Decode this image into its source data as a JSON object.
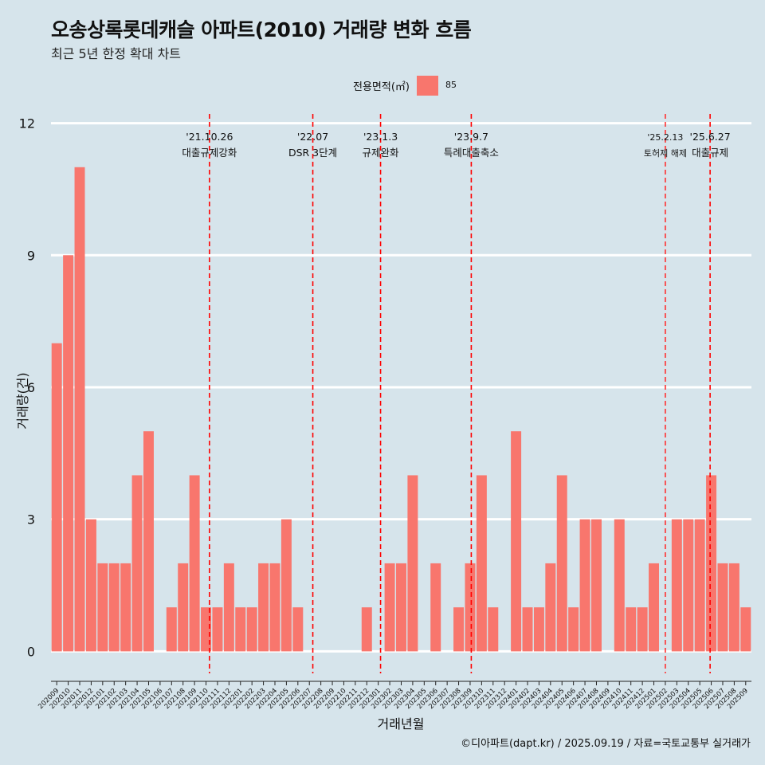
{
  "title": "오송상록롯데캐슬 아파트(2010) 거래량 변화 흐름",
  "subtitle": "최근 5년 한정 확대 차트",
  "caption": "©디아파트(dapt.kr) / 2025.09.19 / 자료=국토교통부 실거래가",
  "legend": {
    "title": "전용면적(㎡)",
    "label": "85",
    "color": "#f8766d"
  },
  "chart_data": {
    "type": "bar",
    "xlabel": "거래년월",
    "ylabel": "거래량(건)",
    "ylim": [
      -0.5,
      12.3
    ],
    "yticks": [
      0,
      3,
      6,
      9,
      12
    ],
    "bar_color": "#f8766d",
    "categories": [
      "202009",
      "202010",
      "202011",
      "202012",
      "202101",
      "202102",
      "202103",
      "202104",
      "202105",
      "202106",
      "202107",
      "202108",
      "202109",
      "202110",
      "202111",
      "202112",
      "202201",
      "202202",
      "202203",
      "202204",
      "202205",
      "202206",
      "202207",
      "202208",
      "202209",
      "202210",
      "202211",
      "202212",
      "202301",
      "202302",
      "202303",
      "202304",
      "202305",
      "202306",
      "202307",
      "202308",
      "202309",
      "202310",
      "202311",
      "202312",
      "202401",
      "202402",
      "202403",
      "202404",
      "202405",
      "202406",
      "202407",
      "202408",
      "202409",
      "202410",
      "202411",
      "202412",
      "202501",
      "202502",
      "202503",
      "202504",
      "202505",
      "202506",
      "202507",
      "202508",
      "202509"
    ],
    "values": [
      7,
      9,
      11,
      3,
      2,
      2,
      2,
      4,
      5,
      0,
      1,
      2,
      4,
      1,
      1,
      2,
      1,
      1,
      2,
      2,
      3,
      1,
      0,
      0,
      0,
      0,
      0,
      1,
      0,
      2,
      2,
      4,
      0,
      2,
      0,
      1,
      2,
      4,
      1,
      0,
      5,
      1,
      1,
      2,
      4,
      1,
      3,
      3,
      0,
      3,
      1,
      1,
      2,
      0,
      3,
      3,
      3,
      4,
      2,
      2,
      1
    ],
    "annotations": [
      {
        "date": "'21.10.26",
        "label": "대출규제강화",
        "x_index": 13.3,
        "color": "#ff0000"
      },
      {
        "date": "'22.07",
        "label": "DSR 3단계",
        "x_index": 22.3,
        "color": "#ff0000"
      },
      {
        "date": "'23.1.3",
        "label": "규제완화",
        "x_index": 28.2,
        "color": "#ff0000"
      },
      {
        "date": "'23.9.7",
        "label": "특례대출축소",
        "x_index": 36.1,
        "color": "#ff0000"
      },
      {
        "date": "'25.2.13",
        "label": "토허제 해제",
        "x_index": 53.0,
        "color": "#ff3030"
      },
      {
        "date": "'25.6.27",
        "label": "대출규제",
        "x_index": 56.9,
        "color": "#ff0000"
      }
    ]
  }
}
